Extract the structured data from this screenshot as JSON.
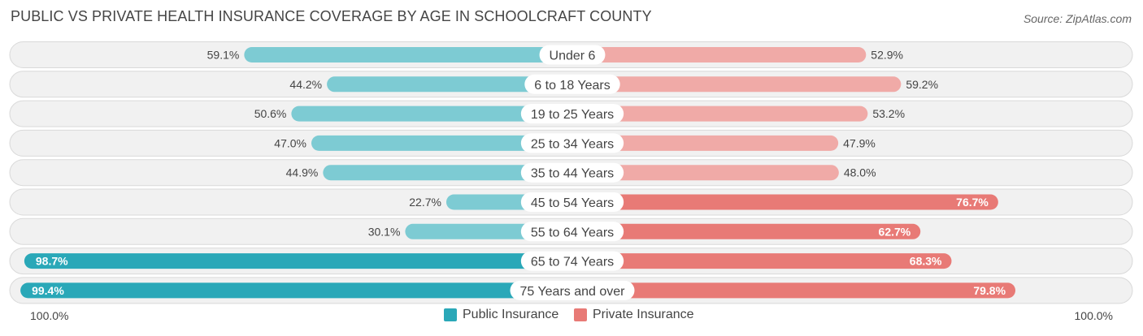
{
  "title": "PUBLIC VS PRIVATE HEALTH INSURANCE COVERAGE BY AGE IN SCHOOLCRAFT COUNTY",
  "source": "Source: ZipAtlas.com",
  "colors": {
    "public": "#2aa8b8",
    "public_light": "#7dcbd3",
    "private": "#e87a76",
    "private_light": "#f0aaa7",
    "row_bg": "#f1f1f1",
    "row_border": "#d9d9d9"
  },
  "legend": {
    "public_label": "Public Insurance",
    "private_label": "Private Insurance"
  },
  "axis": {
    "left_label": "100.0%",
    "right_label": "100.0%"
  },
  "chart_data": {
    "type": "bar",
    "orientation": "horizontal-diverging",
    "title": "PUBLIC VS PRIVATE HEALTH INSURANCE COVERAGE BY AGE IN SCHOOLCRAFT COUNTY",
    "xlim": [
      -100,
      100
    ],
    "categories": [
      "Under 6",
      "6 to 18 Years",
      "19 to 25 Years",
      "25 to 34 Years",
      "35 to 44 Years",
      "45 to 54 Years",
      "55 to 64 Years",
      "65 to 74 Years",
      "75 Years and over"
    ],
    "series": [
      {
        "name": "Public Insurance",
        "values": [
          59.1,
          44.2,
          50.6,
          47.0,
          44.9,
          22.7,
          30.1,
          98.7,
          99.4
        ],
        "labels": [
          "59.1%",
          "44.2%",
          "50.6%",
          "47.0%",
          "44.9%",
          "22.7%",
          "30.1%",
          "98.7%",
          "99.4%"
        ]
      },
      {
        "name": "Private Insurance",
        "values": [
          52.9,
          59.2,
          53.2,
          47.9,
          48.0,
          76.7,
          62.7,
          68.3,
          79.8
        ],
        "labels": [
          "52.9%",
          "59.2%",
          "53.2%",
          "47.9%",
          "48.0%",
          "76.7%",
          "62.7%",
          "68.3%",
          "79.8%"
        ]
      }
    ]
  }
}
